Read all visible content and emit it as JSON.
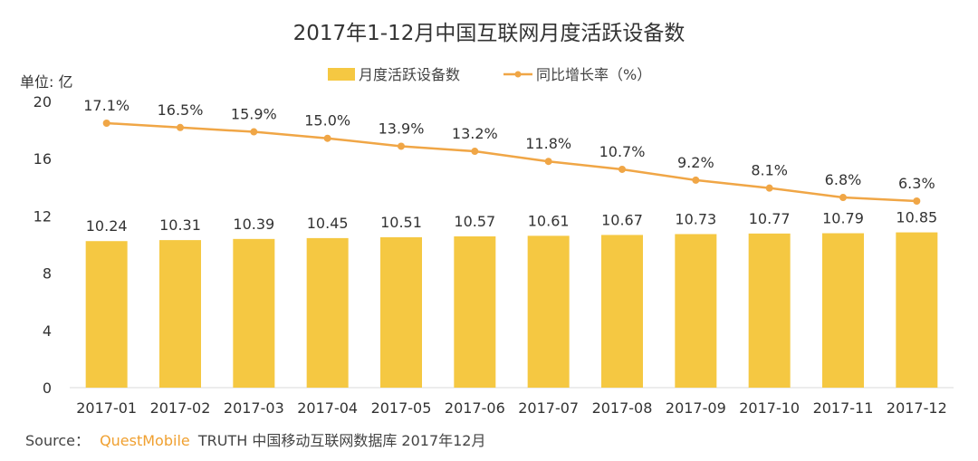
{
  "chart_data": {
    "type": "bar",
    "title": "2017年1-12月中国互联网月度活跃设备数",
    "ylabel": "单位: 亿",
    "categories": [
      "2017-01",
      "2017-02",
      "2017-03",
      "2017-04",
      "2017-05",
      "2017-06",
      "2017-07",
      "2017-08",
      "2017-09",
      "2017-10",
      "2017-11",
      "2017-12"
    ],
    "ylim": [
      0,
      20
    ],
    "yticks": [
      "0",
      "4",
      "8",
      "12",
      "16",
      "20"
    ],
    "grid": false,
    "legend_position": "top-center",
    "series": [
      {
        "name": "月度活跃设备数",
        "type": "bar",
        "color": "#f5c842",
        "values": [
          10.24,
          10.31,
          10.39,
          10.45,
          10.51,
          10.57,
          10.61,
          10.67,
          10.73,
          10.77,
          10.79,
          10.85
        ],
        "labels": [
          "10.24",
          "10.31",
          "10.39",
          "10.45",
          "10.51",
          "10.57",
          "10.61",
          "10.67",
          "10.73",
          "10.77",
          "10.79",
          "10.85"
        ]
      },
      {
        "name": "同比增长率（%）",
        "type": "line",
        "color": "#f0a646",
        "values": [
          17.1,
          16.5,
          15.9,
          15.0,
          13.9,
          13.2,
          11.8,
          10.7,
          9.2,
          8.1,
          6.8,
          6.3
        ],
        "labels": [
          "17.1%",
          "16.5%",
          "15.9%",
          "15.0%",
          "13.9%",
          "13.2%",
          "11.8%",
          "10.7%",
          "9.2%",
          "8.1%",
          "6.8%",
          "6.3%"
        ]
      }
    ]
  },
  "source": {
    "prefix": "Source：",
    "brand": "QuestMobile",
    "rest": "TRUTH 中国移动互联网数据库 2017年12月"
  }
}
